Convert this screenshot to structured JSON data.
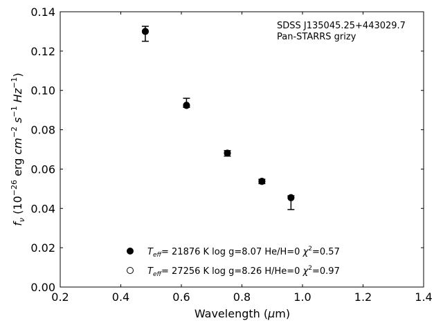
{
  "chart_data": {
    "type": "scatter",
    "xlim": [
      0.2,
      1.4
    ],
    "ylim": [
      0.0,
      0.14
    ],
    "x_ticks": [
      "0.2",
      "0.4",
      "0.6",
      "0.8",
      "1.0",
      "1.2",
      "1.4"
    ],
    "y_ticks": [
      "0.00",
      "0.02",
      "0.04",
      "0.06",
      "0.08",
      "0.10",
      "0.12",
      "0.14"
    ],
    "x_tick_values": [
      0.2,
      0.4,
      0.6,
      0.8,
      1.0,
      1.2,
      1.4
    ],
    "y_tick_values": [
      0.0,
      0.02,
      0.04,
      0.06,
      0.08,
      0.1,
      0.12,
      0.14
    ],
    "grid": false,
    "annotation_lines": [
      "SDSS J135045.25+443029.7",
      "Pan-STARRS grizy"
    ],
    "observed": {
      "x": [
        0.481,
        0.617,
        0.752,
        0.866,
        0.962
      ],
      "y": [
        0.1288,
        0.0937,
        0.068,
        0.0537,
        0.0429
      ],
      "yerr_low": [
        0.0038,
        0.0023,
        0.0014,
        0.0011,
        0.0035
      ],
      "yerr_high": [
        0.0038,
        0.0023,
        0.0014,
        0.0011,
        0.0035
      ]
    },
    "series": [
      {
        "name": "T_eff= 21876 K  log g=8.07  He/H=0  χ²=0.57",
        "marker": "filled-circle",
        "x": [
          0.481,
          0.617,
          0.752,
          0.866,
          0.962
        ],
        "y": [
          0.13,
          0.0923,
          0.0681,
          0.0538,
          0.0454
        ]
      },
      {
        "name": "T_eff= 27256 K  log g=8.26  H/He=0  χ²=0.97",
        "marker": "open-circle",
        "x": [
          0.481,
          0.617,
          0.752,
          0.866,
          0.962
        ],
        "y": [
          0.13,
          0.0925,
          0.0681,
          0.0537,
          0.0455
        ]
      }
    ],
    "legend": [
      {
        "marker": "filled-circle",
        "teff": "= 21876 K  log g=8.07  He/H=0  ",
        "chi": "=0.57"
      },
      {
        "marker": "open-circle",
        "teff": "= 27256 K  log g=8.26  H/He=0  ",
        "chi": "=0.97"
      }
    ],
    "legend_position": "lower-center",
    "colors": {
      "marker": "#000000",
      "axis": "#000000",
      "background": "#ffffff"
    }
  }
}
